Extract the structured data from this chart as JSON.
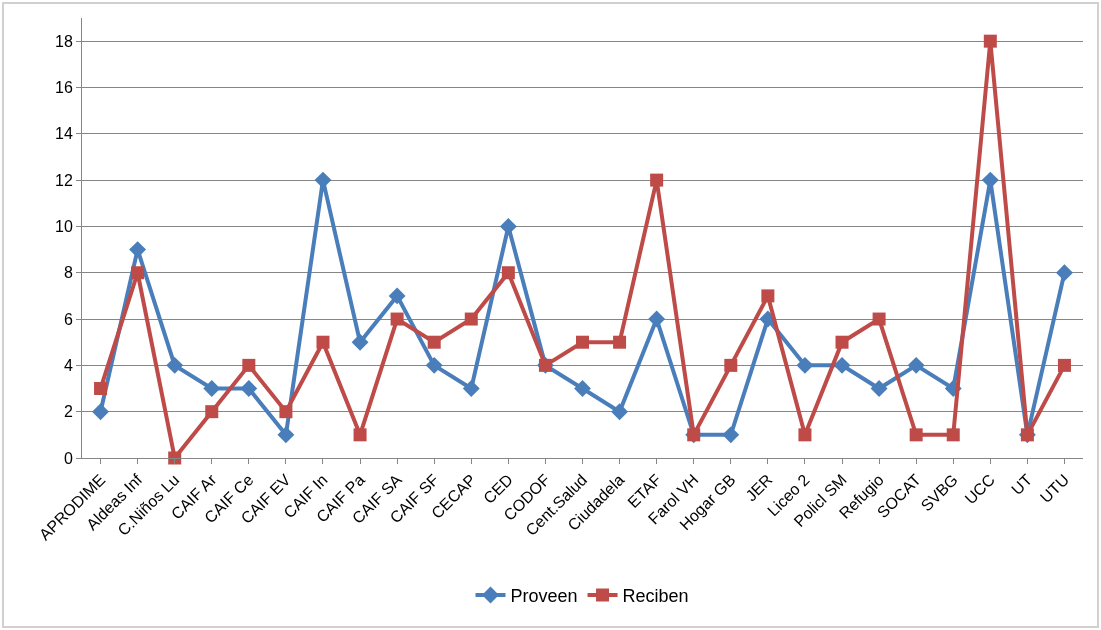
{
  "chart_data": {
    "type": "line",
    "categories": [
      "APRODIME",
      "Aldeas Inf",
      "C.Niños Lu",
      "CAIF Ar",
      "CAIF Ce",
      "CAIF EV",
      "CAIF In",
      "CAIF Pa",
      "CAIF SA",
      "CAIF SF",
      "CECAP",
      "CED",
      "CODOF",
      "Cent.Salud",
      "Ciudadela",
      "ETAF",
      "Farol VH",
      "Hogar GB",
      "JER",
      "Liceo 2",
      "Policl SM",
      "Refugio",
      "SOCAT",
      "SVBG",
      "UCC",
      "UT",
      "UTU"
    ],
    "series": [
      {
        "name": "Proveen",
        "color": "#4a7ebb",
        "marker": "diamond",
        "values": [
          2,
          9,
          4,
          3,
          3,
          1,
          12,
          5,
          7,
          4,
          3,
          10,
          4,
          3,
          2,
          6,
          1,
          1,
          6,
          4,
          4,
          3,
          4,
          3,
          12,
          1,
          8
        ]
      },
      {
        "name": "Reciben",
        "color": "#be4b48",
        "marker": "square",
        "values": [
          3,
          8,
          0,
          2,
          4,
          2,
          5,
          1,
          6,
          5,
          6,
          8,
          4,
          5,
          5,
          12,
          1,
          4,
          7,
          1,
          5,
          6,
          1,
          1,
          18,
          1,
          4
        ]
      }
    ],
    "ylim": [
      0,
      19
    ],
    "yticks": [
      0,
      2,
      4,
      6,
      8,
      10,
      12,
      14,
      16,
      18
    ],
    "grid": "y",
    "legend": "bottom",
    "line_style": "solid"
  }
}
